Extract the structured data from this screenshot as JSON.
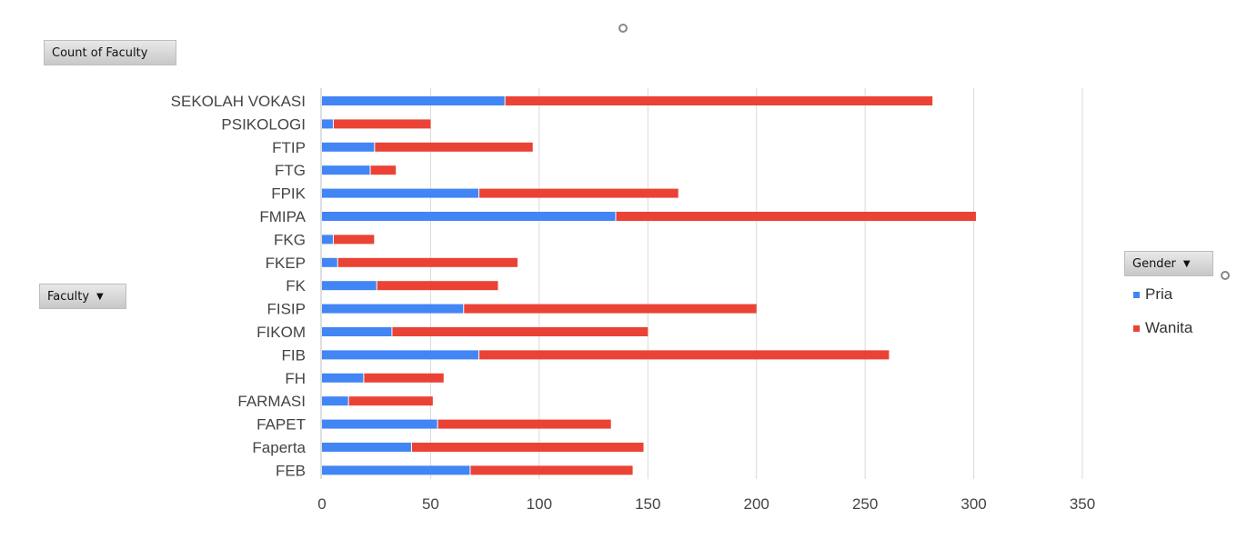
{
  "pivot": {
    "values_field": "Count of Faculty",
    "row_field": "Faculty",
    "legend_field": "Gender"
  },
  "legend": {
    "items": [
      {
        "label": "Pria",
        "color": "#4285f4"
      },
      {
        "label": "Wanita",
        "color": "#ea4335"
      }
    ]
  },
  "chart_data": {
    "type": "bar",
    "orientation": "horizontal",
    "stacked": true,
    "categories": [
      "SEKOLAH VOKASI",
      "PSIKOLOGI",
      "FTIP",
      "FTG",
      "FPIK",
      "FMIPA",
      "FKG",
      "FKEP",
      "FK",
      "FISIP",
      "FIKOM",
      "FIB",
      "FH",
      "FARMASI",
      "FAPET",
      "Faperta",
      "FEB"
    ],
    "series": [
      {
        "name": "Pria",
        "color": "#4285f4",
        "values": [
          84,
          5,
          24,
          22,
          72,
          135,
          5,
          7,
          25,
          65,
          32,
          72,
          19,
          12,
          53,
          41,
          68
        ]
      },
      {
        "name": "Wanita",
        "color": "#ea4335",
        "values": [
          197,
          45,
          73,
          12,
          92,
          166,
          19,
          83,
          56,
          135,
          118,
          189,
          37,
          39,
          80,
          107,
          75
        ]
      }
    ],
    "xlim": [
      0,
      350
    ],
    "xticks": [
      "0",
      "50",
      "100",
      "150",
      "200",
      "250",
      "300",
      "350"
    ],
    "grid": true,
    "legend_position": "right"
  }
}
